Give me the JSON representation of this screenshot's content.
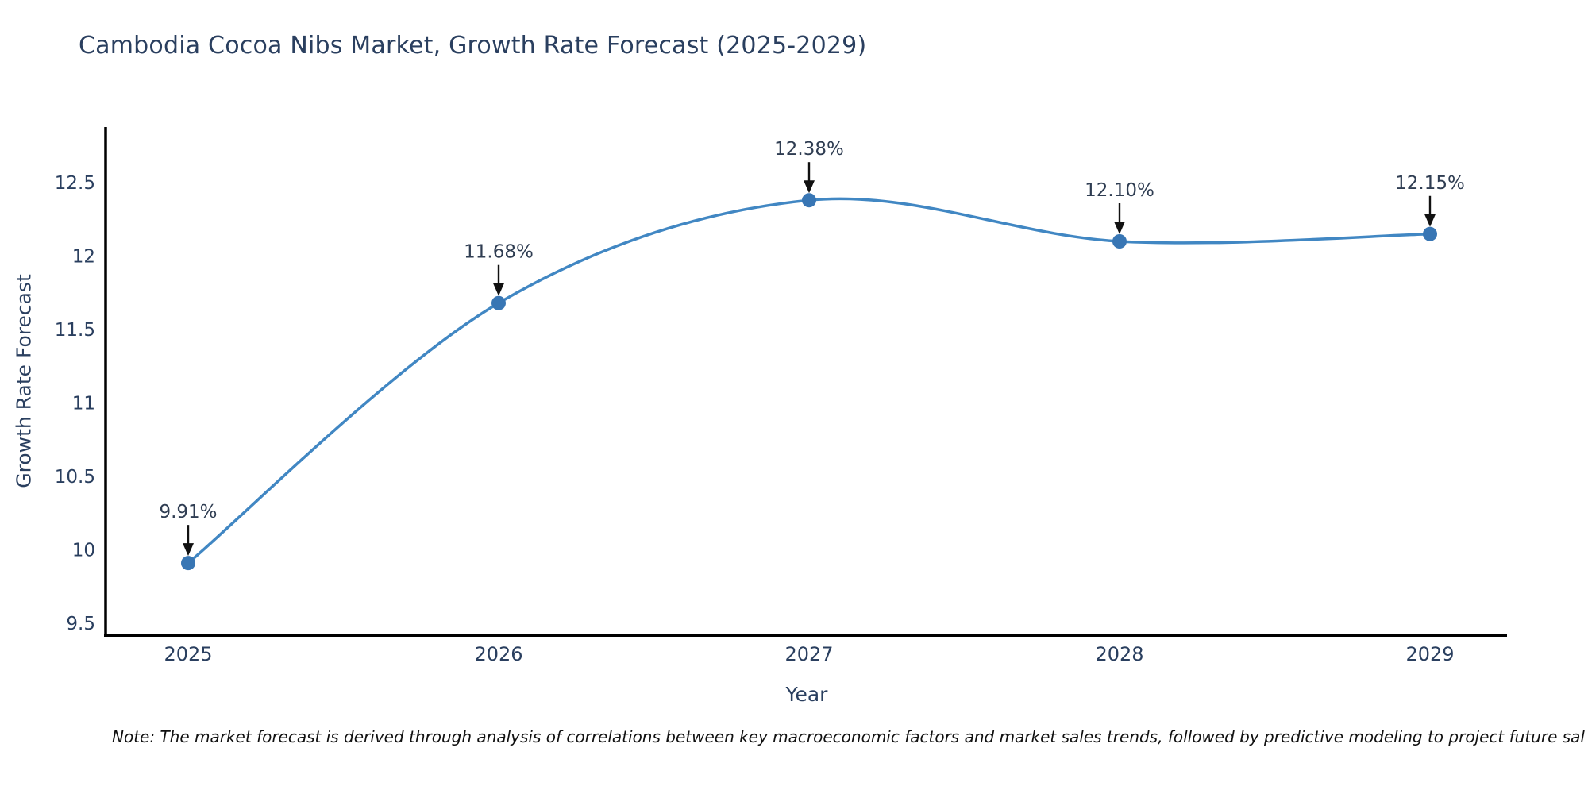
{
  "title": "Cambodia Cocoa Nibs Market, Growth Rate Forecast (2025-2029)",
  "note": "Note: The market forecast is derived through analysis of correlations between key macroeconomic factors and market sales trends, followed by predictive modeling to project future sal",
  "chart_data": {
    "type": "line",
    "title": "Cambodia Cocoa Nibs Market, Growth Rate Forecast (2025-2029)",
    "xlabel": "Year",
    "ylabel": "Growth Rate Forecast",
    "x": [
      2025,
      2026,
      2027,
      2028,
      2029
    ],
    "y": [
      9.91,
      11.68,
      12.38,
      12.1,
      12.15
    ],
    "point_labels": [
      "9.91%",
      "11.68%",
      "12.38%",
      "12.10%",
      "12.15%"
    ],
    "yticks": [
      9.5,
      10,
      10.5,
      11,
      11.5,
      12,
      12.5
    ],
    "ylim": [
      9.42,
      12.88
    ],
    "line_shape": "spline",
    "grid": false,
    "legend": "none",
    "colors": {
      "line": "#4187c3",
      "marker": "#3876b4",
      "axis": "#000000",
      "tick_text": "#2a3f5f",
      "annotation_text": "#2f3d52",
      "arrow": "#111111"
    }
  }
}
